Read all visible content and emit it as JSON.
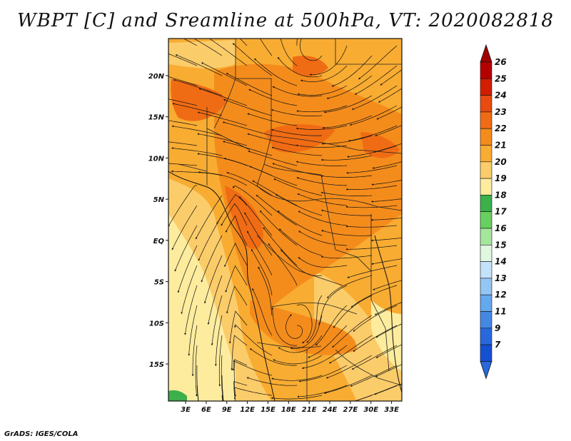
{
  "title": "WBPT [C] and Sreamline at 500hPa, VT: 2020082818",
  "credit": "GrADS: IGES/COLA",
  "map": {
    "lon_labels": [
      "3E",
      "6E",
      "9E",
      "12E",
      "15E",
      "18E",
      "21E",
      "24E",
      "27E",
      "30E",
      "33E"
    ],
    "lon_values": [
      3,
      6,
      9,
      12,
      15,
      18,
      21,
      24,
      27,
      30,
      33
    ],
    "lat_labels": [
      "20N",
      "15N",
      "10N",
      "5N",
      "EQ",
      "5S",
      "10S",
      "15S"
    ],
    "lat_values": [
      20,
      15,
      10,
      5,
      0,
      -5,
      -10,
      -15
    ],
    "lon_range": [
      0.5,
      34.5
    ],
    "lat_range": [
      -19.5,
      24.5
    ]
  },
  "colorbar": {
    "labels": [
      "26",
      "25",
      "24",
      "23",
      "22",
      "21",
      "20",
      "19",
      "18",
      "17",
      "16",
      "15",
      "14",
      "13",
      "12",
      "11",
      "9",
      "7"
    ],
    "colors": [
      "#b40000",
      "#d21e00",
      "#e84a10",
      "#f06c14",
      "#f48c1c",
      "#f8ac32",
      "#fbcc6a",
      "#fdec9e",
      "#3cb04a",
      "#68d060",
      "#a4e69c",
      "#e0f8e0",
      "#c4e2fa",
      "#94c6f4",
      "#64a8ee",
      "#4488e4",
      "#2868dc",
      "#1450d0"
    ],
    "top_arrow_color": "#a00000",
    "bottom_arrow_color": "#2868dc"
  }
}
